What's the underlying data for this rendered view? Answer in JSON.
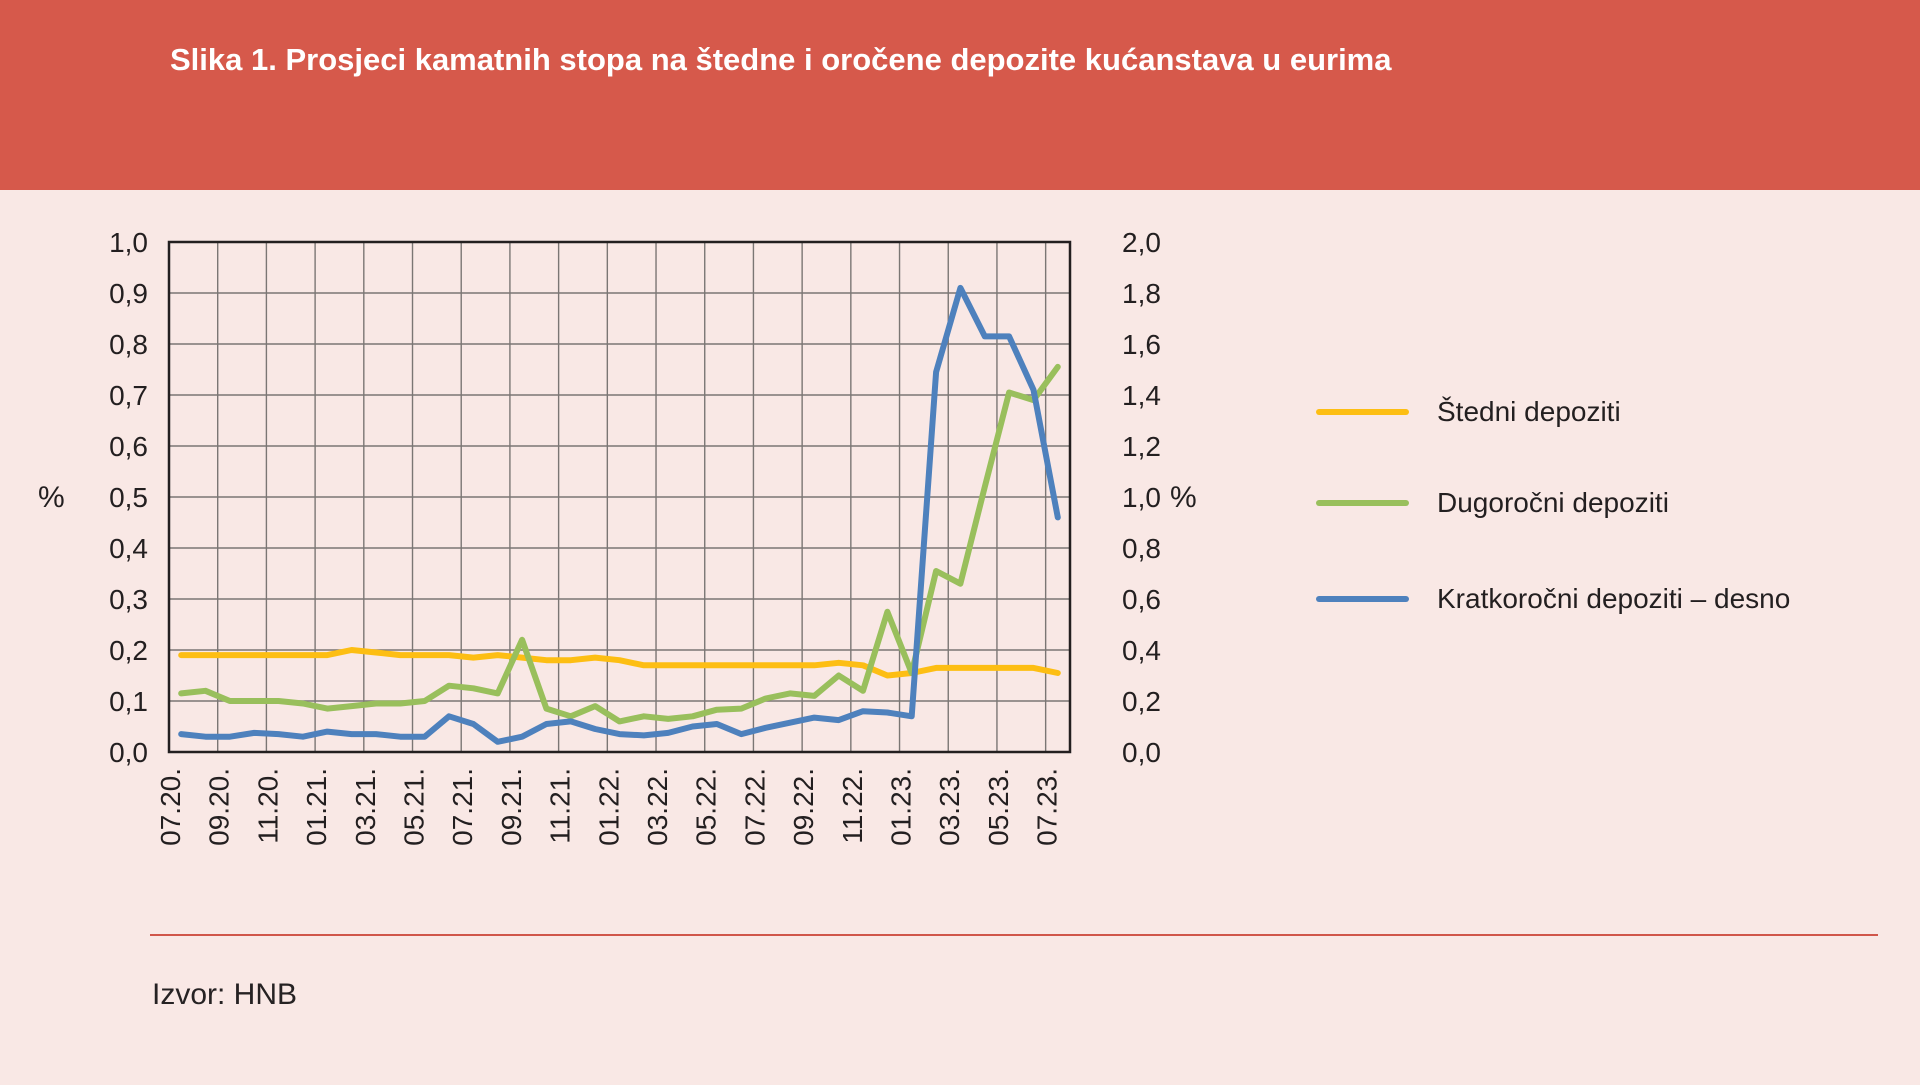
{
  "header": {
    "title": "Slika 1. Prosjeci kamatnih stopa na štedne i oročene depozite kućanstava u eurima",
    "background_color": "#d6594b",
    "title_color": "#ffffff"
  },
  "page": {
    "background_color": "#f9e8e5"
  },
  "source": {
    "text": "Izvor: HNB"
  },
  "legend": {
    "items": [
      {
        "label": "Štedni depoziti",
        "color": "#fdbe13"
      },
      {
        "label": "Dugoročni depoziti",
        "color": "#99bf5c"
      },
      {
        "label": "Kratkoročni depoziti – desno",
        "color": "#4e81bd"
      }
    ]
  },
  "chart_data": {
    "type": "line",
    "title": "Slika 1. Prosjeci kamatnih stopa na štedne i oročene depozite kućanstava u eurima",
    "grid": true,
    "colors": {
      "grid_line": "#7b7674",
      "plot_border": "#231f20",
      "axis_text": "#231f20"
    },
    "left_axis": {
      "label": "%",
      "min": 0.0,
      "max": 1.0,
      "tick_labels_top_to_bottom": [
        "1,0",
        "0,9",
        "0,8",
        "0,7",
        "0,6",
        "0,5",
        "0,4",
        "0,3",
        "0,2",
        "0,1",
        "0,0"
      ]
    },
    "right_axis": {
      "label": "%",
      "min": 0.0,
      "max": 2.0,
      "tick_labels_top_to_bottom": [
        "2,0",
        "1,8",
        "1,6",
        "1,4",
        "1,2",
        "1,0",
        "0,8",
        "0,6",
        "0,4",
        "0,2",
        "0,0"
      ]
    },
    "x_axis": {
      "tick_labels": [
        "07.20.",
        "09.20.",
        "11.20.",
        "01.21.",
        "03.21.",
        "05.21.",
        "07.21.",
        "09.21.",
        "11.21.",
        "01.22.",
        "03.22.",
        "05.22.",
        "07.22.",
        "09.22.",
        "11.22.",
        "01.23.",
        "03.23.",
        "05.23.",
        "07.23."
      ],
      "months_total": 37,
      "tick_every_months": 2
    },
    "series": [
      {
        "name": "Štedni depoziti",
        "axis": "left",
        "color": "#fdbe13",
        "values": [
          0.19,
          0.19,
          0.19,
          0.19,
          0.19,
          0.19,
          0.19,
          0.2,
          0.195,
          0.19,
          0.19,
          0.19,
          0.185,
          0.19,
          0.185,
          0.18,
          0.18,
          0.185,
          0.18,
          0.17,
          0.17,
          0.17,
          0.17,
          0.17,
          0.17,
          0.17,
          0.17,
          0.175,
          0.17,
          0.15,
          0.155,
          0.165,
          0.165,
          0.165,
          0.165,
          0.165,
          0.155
        ]
      },
      {
        "name": "Dugoročni depoziti",
        "axis": "left",
        "color": "#99bf5c",
        "values": [
          0.115,
          0.12,
          0.1,
          0.1,
          0.1,
          0.095,
          0.085,
          0.09,
          0.095,
          0.095,
          0.1,
          0.13,
          0.125,
          0.115,
          0.22,
          0.085,
          0.07,
          0.09,
          0.06,
          0.07,
          0.065,
          0.07,
          0.083,
          0.085,
          0.105,
          0.115,
          0.11,
          0.15,
          0.12,
          0.275,
          0.155,
          0.355,
          0.33,
          0.52,
          0.705,
          0.69,
          0.755
        ]
      },
      {
        "name": "Kratkoročni depoziti – desno",
        "axis": "right",
        "color": "#4e81bd",
        "values": [
          0.07,
          0.06,
          0.06,
          0.075,
          0.07,
          0.06,
          0.08,
          0.07,
          0.07,
          0.06,
          0.06,
          0.14,
          0.11,
          0.04,
          0.06,
          0.11,
          0.12,
          0.09,
          0.07,
          0.065,
          0.075,
          0.1,
          0.11,
          0.07,
          0.095,
          0.115,
          0.135,
          0.125,
          0.16,
          0.155,
          0.14,
          1.49,
          1.82,
          1.63,
          1.63,
          1.42,
          0.92
        ]
      }
    ]
  }
}
